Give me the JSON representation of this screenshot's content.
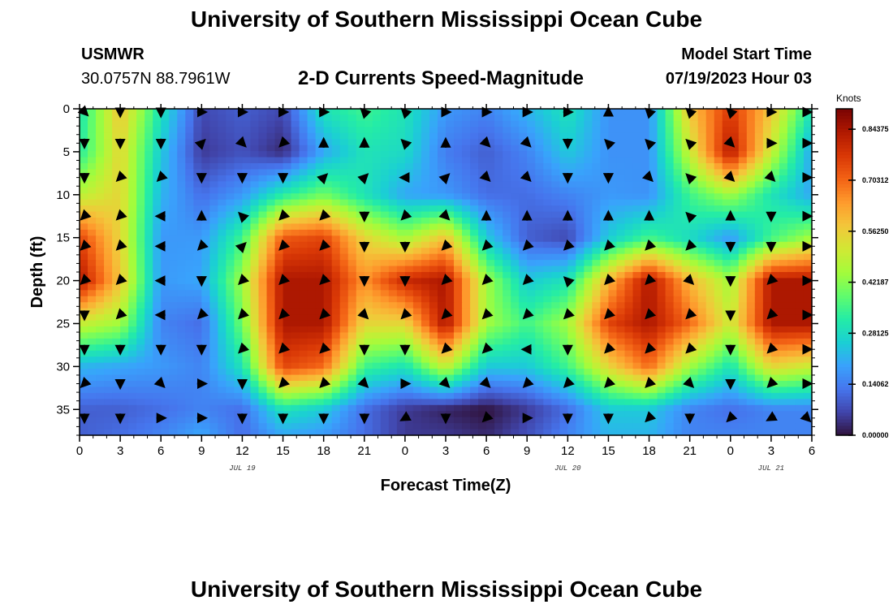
{
  "header": {
    "title": "University of Southern Mississippi Ocean Cube",
    "station": "USMWR",
    "coords": "30.0757N  88.7961W",
    "plot_title": "2-D Currents Speed-Magnitude",
    "model_start_label": "Model Start Time",
    "model_start_value": "07/19/2023 Hour 03"
  },
  "footer": {
    "title": "University of Southern Mississippi Ocean Cube"
  },
  "chart_data": {
    "type": "heatmap",
    "title": "2-D Currents Speed-Magnitude",
    "xlabel": "Forecast Time(Z)",
    "ylabel": "Depth (ft)",
    "x_hours_range": [
      0,
      54
    ],
    "y_range": [
      0,
      38
    ],
    "x_tick_hours": [
      0,
      3,
      6,
      9,
      12,
      15,
      18,
      21,
      24,
      27,
      30,
      33,
      36,
      39,
      42,
      45,
      48,
      51,
      54
    ],
    "x_tick_labels": [
      "0",
      "3",
      "6",
      "9",
      "12",
      "15",
      "18",
      "21",
      "0",
      "3",
      "6",
      "9",
      "12",
      "15",
      "18",
      "21",
      "0",
      "3",
      "6"
    ],
    "y_ticks": [
      0,
      5,
      10,
      15,
      20,
      25,
      30,
      35
    ],
    "y_tick_labels": [
      "0",
      "5",
      "10",
      "15",
      "20",
      "25",
      "30",
      "35"
    ],
    "date_labels": [
      {
        "hour": 12,
        "text": "JUL 19"
      },
      {
        "hour": 36,
        "text": "JUL 20"
      },
      {
        "hour": 51,
        "text": "JUL 21"
      }
    ],
    "colorbar": {
      "label": "Knots",
      "min": 0.0,
      "max": 0.9,
      "ticks": [
        0.84375,
        0.70312,
        0.5625,
        0.42187,
        0.28125,
        0.14062,
        0.0
      ],
      "tick_labels": [
        "0.84375",
        "0.70312",
        "0.56250",
        "0.42187",
        "0.28125",
        "0.14062",
        "0.00000"
      ],
      "colormap": [
        "#30123b",
        "#4145ab",
        "#4675ed",
        "#39a2fc",
        "#1bcfd4",
        "#24eca6",
        "#61fc6c",
        "#a4fc3b",
        "#d1e834",
        "#f3c63a",
        "#fe9b2d",
        "#f36315",
        "#d93806",
        "#b11901",
        "#7a0403"
      ]
    },
    "speed_grid": {
      "x_hours": [
        0,
        3,
        6,
        9,
        12,
        15,
        18,
        21,
        24,
        27,
        30,
        33,
        36,
        39,
        42,
        45,
        48,
        51,
        54
      ],
      "depths": [
        0,
        5,
        10,
        15,
        20,
        25,
        30,
        35,
        38
      ],
      "values_knots": [
        [
          0.3,
          0.58,
          0.3,
          0.07,
          0.1,
          0.07,
          0.3,
          0.35,
          0.3,
          0.18,
          0.15,
          0.22,
          0.3,
          0.17,
          0.17,
          0.58,
          0.77,
          0.58,
          0.3
        ],
        [
          0.32,
          0.55,
          0.25,
          0.05,
          0.08,
          0.03,
          0.2,
          0.3,
          0.28,
          0.14,
          0.1,
          0.15,
          0.25,
          0.17,
          0.17,
          0.5,
          0.84,
          0.5,
          0.2
        ],
        [
          0.48,
          0.55,
          0.22,
          0.12,
          0.18,
          0.32,
          0.4,
          0.3,
          0.2,
          0.18,
          0.12,
          0.12,
          0.15,
          0.18,
          0.17,
          0.35,
          0.45,
          0.3,
          0.2
        ],
        [
          0.75,
          0.55,
          0.18,
          0.18,
          0.35,
          0.72,
          0.75,
          0.55,
          0.45,
          0.58,
          0.25,
          0.1,
          0.07,
          0.25,
          0.35,
          0.28,
          0.18,
          0.35,
          0.45
        ],
        [
          0.84,
          0.58,
          0.18,
          0.2,
          0.45,
          0.84,
          0.84,
          0.65,
          0.8,
          0.84,
          0.45,
          0.25,
          0.3,
          0.6,
          0.84,
          0.6,
          0.45,
          0.84,
          0.84
        ],
        [
          0.5,
          0.45,
          0.15,
          0.12,
          0.4,
          0.84,
          0.84,
          0.55,
          0.55,
          0.84,
          0.45,
          0.35,
          0.45,
          0.75,
          0.84,
          0.7,
          0.5,
          0.84,
          0.84
        ],
        [
          0.22,
          0.2,
          0.18,
          0.15,
          0.3,
          0.75,
          0.7,
          0.35,
          0.3,
          0.5,
          0.25,
          0.25,
          0.35,
          0.55,
          0.7,
          0.45,
          0.3,
          0.55,
          0.5
        ],
        [
          0.1,
          0.1,
          0.12,
          0.15,
          0.12,
          0.3,
          0.25,
          0.12,
          0.05,
          0.02,
          0.0,
          0.05,
          0.12,
          0.25,
          0.25,
          0.15,
          0.12,
          0.15,
          0.15
        ],
        [
          0.1,
          0.12,
          0.15,
          0.2,
          0.12,
          0.2,
          0.18,
          0.12,
          0.05,
          0.05,
          0.03,
          0.08,
          0.15,
          0.22,
          0.22,
          0.15,
          0.15,
          0.15,
          0.15
        ]
      ]
    },
    "vectors": {
      "x_hours": [
        0,
        3,
        6,
        9,
        12,
        15,
        18,
        21,
        24,
        27,
        30,
        33,
        36,
        39,
        42,
        45,
        48,
        51,
        54
      ],
      "depths": [
        0,
        4,
        8,
        12.5,
        16,
        20,
        24,
        28,
        32,
        36
      ],
      "direction_deg": [
        [
          45,
          90,
          90,
          0,
          0,
          0,
          0,
          225,
          225,
          0,
          0,
          0,
          0,
          270,
          225,
          225,
          225,
          0,
          0
        ],
        [
          90,
          90,
          90,
          315,
          45,
          135,
          270,
          270,
          225,
          270,
          45,
          45,
          90,
          225,
          225,
          225,
          45,
          0,
          0
        ],
        [
          90,
          135,
          135,
          90,
          90,
          90,
          315,
          315,
          180,
          315,
          45,
          45,
          90,
          90,
          45,
          225,
          45,
          45,
          0
        ],
        [
          135,
          135,
          180,
          270,
          225,
          135,
          135,
          90,
          135,
          45,
          270,
          270,
          270,
          270,
          270,
          225,
          270,
          90,
          0
        ],
        [
          135,
          135,
          180,
          135,
          315,
          135,
          135,
          90,
          90,
          135,
          135,
          135,
          135,
          135,
          135,
          135,
          90,
          90,
          0
        ],
        [
          135,
          135,
          180,
          90,
          135,
          135,
          135,
          90,
          90,
          135,
          135,
          135,
          225,
          135,
          135,
          45,
          90,
          135,
          0
        ],
        [
          90,
          135,
          180,
          135,
          135,
          135,
          135,
          45,
          135,
          135,
          135,
          135,
          135,
          135,
          135,
          135,
          90,
          135,
          0
        ],
        [
          90,
          90,
          90,
          90,
          135,
          135,
          135,
          90,
          90,
          135,
          135,
          180,
          90,
          135,
          135,
          135,
          90,
          135,
          0
        ],
        [
          135,
          90,
          45,
          0,
          90,
          135,
          135,
          45,
          0,
          45,
          45,
          135,
          135,
          135,
          135,
          45,
          90,
          135,
          0
        ],
        [
          90,
          90,
          0,
          0,
          90,
          90,
          90,
          90,
          150,
          90,
          135,
          0,
          90,
          90,
          135,
          90,
          135,
          150,
          45
        ]
      ]
    }
  }
}
